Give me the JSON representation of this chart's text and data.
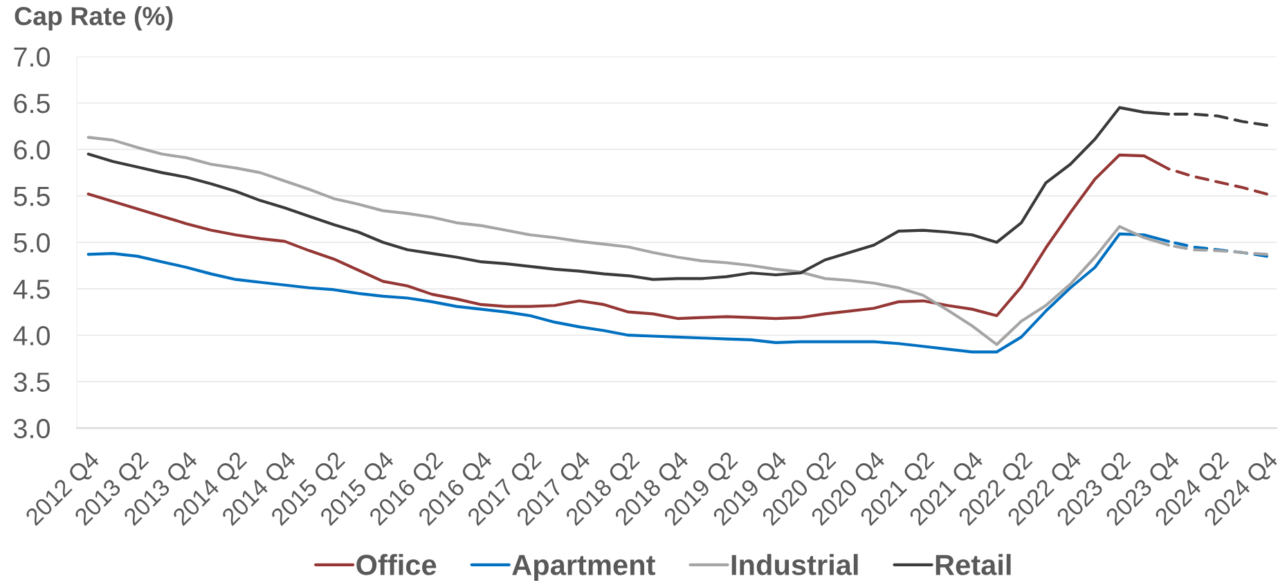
{
  "chart_data": {
    "type": "line",
    "ylabel": "Cap Rate (%)",
    "categories": [
      "2012 Q4",
      null,
      "2013 Q2",
      null,
      "2013 Q4",
      null,
      "2014 Q2",
      null,
      "2014 Q4",
      null,
      "2015 Q2",
      null,
      "2015 Q4",
      null,
      "2016 Q2",
      null,
      "2016 Q4",
      null,
      "2017 Q2",
      null,
      "2017 Q4",
      null,
      "2018 Q2",
      null,
      "2018 Q4",
      null,
      "2019 Q2",
      null,
      "2019 Q4",
      null,
      "2020 Q2",
      null,
      "2020 Q4",
      null,
      "2021 Q2",
      null,
      "2021 Q4",
      null,
      "2022 Q2",
      null,
      "2022 Q4",
      null,
      "2023 Q2",
      null,
      "2023 Q4",
      null,
      "2024 Q2",
      null,
      "2024 Q4"
    ],
    "series": [
      {
        "name": "Office",
        "color": "#953735",
        "values": [
          5.52,
          5.44,
          5.36,
          5.28,
          5.2,
          5.13,
          5.08,
          5.04,
          5.01,
          4.91,
          4.82,
          4.7,
          4.58,
          4.53,
          4.44,
          4.39,
          4.33,
          4.31,
          4.31,
          4.32,
          4.37,
          4.33,
          4.25,
          4.23,
          4.18,
          4.19,
          4.2,
          4.19,
          4.18,
          4.19,
          4.23,
          4.26,
          4.29,
          4.36,
          4.37,
          4.32,
          4.28,
          4.21,
          4.52,
          4.94,
          5.32,
          5.68,
          5.94,
          5.93,
          5.79,
          null,
          null,
          null,
          null
        ]
      },
      {
        "name": "Apartment",
        "color": "#0070c0",
        "values": [
          4.87,
          4.88,
          4.85,
          4.79,
          4.73,
          4.66,
          4.6,
          4.57,
          4.54,
          4.51,
          4.49,
          4.45,
          4.42,
          4.4,
          4.36,
          4.31,
          4.28,
          4.25,
          4.21,
          4.14,
          4.09,
          4.05,
          4.0,
          3.99,
          3.98,
          3.97,
          3.96,
          3.95,
          3.92,
          3.93,
          3.93,
          3.93,
          3.93,
          3.91,
          3.88,
          3.85,
          3.82,
          3.82,
          3.98,
          4.26,
          4.51,
          4.73,
          5.09,
          5.08,
          5.01,
          null,
          null,
          null,
          null
        ]
      },
      {
        "name": "Industrial",
        "color": "#a5a5a5",
        "values": [
          6.13,
          6.1,
          6.02,
          5.95,
          5.91,
          5.84,
          5.8,
          5.75,
          5.66,
          5.57,
          5.47,
          5.41,
          5.34,
          5.31,
          5.27,
          5.21,
          5.18,
          5.13,
          5.08,
          5.05,
          5.01,
          4.98,
          4.95,
          4.89,
          4.84,
          4.8,
          4.78,
          4.75,
          4.71,
          4.68,
          4.61,
          4.59,
          4.56,
          4.51,
          4.43,
          4.27,
          4.1,
          3.9,
          4.15,
          4.32,
          4.55,
          4.84,
          5.17,
          5.05,
          4.97,
          null,
          null,
          null,
          null
        ]
      },
      {
        "name": "Retail",
        "color": "#3a3a3a",
        "values": [
          5.95,
          5.87,
          5.81,
          5.75,
          5.7,
          5.63,
          5.55,
          5.45,
          5.37,
          5.28,
          5.19,
          5.11,
          5.0,
          4.92,
          4.88,
          4.84,
          4.79,
          4.77,
          4.74,
          4.71,
          4.69,
          4.66,
          4.64,
          4.6,
          4.61,
          4.61,
          4.63,
          4.67,
          4.65,
          4.67,
          4.81,
          4.89,
          4.97,
          5.12,
          5.13,
          5.11,
          5.08,
          5.0,
          5.21,
          5.64,
          5.84,
          6.11,
          6.45,
          6.4,
          6.38,
          null,
          null,
          null,
          null
        ]
      },
      {
        "color": "#953735",
        "line_style": "dashed",
        "values": [
          null,
          null,
          null,
          null,
          null,
          null,
          null,
          null,
          null,
          null,
          null,
          null,
          null,
          null,
          null,
          null,
          null,
          null,
          null,
          null,
          null,
          null,
          null,
          null,
          null,
          null,
          null,
          null,
          null,
          null,
          null,
          null,
          null,
          null,
          null,
          null,
          null,
          null,
          null,
          null,
          null,
          null,
          null,
          null,
          5.79,
          5.71,
          5.65,
          5.59,
          5.52
        ]
      },
      {
        "color": "#0070c0",
        "line_style": "dashed",
        "values": [
          null,
          null,
          null,
          null,
          null,
          null,
          null,
          null,
          null,
          null,
          null,
          null,
          null,
          null,
          null,
          null,
          null,
          null,
          null,
          null,
          null,
          null,
          null,
          null,
          null,
          null,
          null,
          null,
          null,
          null,
          null,
          null,
          null,
          null,
          null,
          null,
          null,
          null,
          null,
          null,
          null,
          null,
          null,
          null,
          5.01,
          4.95,
          4.92,
          4.89,
          4.85
        ]
      },
      {
        "color": "#a5a5a5",
        "line_style": "dashed",
        "values": [
          null,
          null,
          null,
          null,
          null,
          null,
          null,
          null,
          null,
          null,
          null,
          null,
          null,
          null,
          null,
          null,
          null,
          null,
          null,
          null,
          null,
          null,
          null,
          null,
          null,
          null,
          null,
          null,
          null,
          null,
          null,
          null,
          null,
          null,
          null,
          null,
          null,
          null,
          null,
          null,
          null,
          null,
          null,
          null,
          4.97,
          4.92,
          4.91,
          4.89,
          4.87
        ]
      },
      {
        "color": "#3a3a3a",
        "line_style": "dashed",
        "values": [
          null,
          null,
          null,
          null,
          null,
          null,
          null,
          null,
          null,
          null,
          null,
          null,
          null,
          null,
          null,
          null,
          null,
          null,
          null,
          null,
          null,
          null,
          null,
          null,
          null,
          null,
          null,
          null,
          null,
          null,
          null,
          null,
          null,
          null,
          null,
          null,
          null,
          null,
          null,
          null,
          null,
          null,
          null,
          null,
          6.38,
          6.38,
          6.36,
          6.3,
          6.26
        ]
      }
    ],
    "ylim": [
      3,
      7
    ],
    "yticks": [
      {
        "value": 3,
        "label": "3.0"
      },
      {
        "value": 3.5,
        "label": "3.5"
      },
      {
        "value": 4,
        "label": "4.0"
      },
      {
        "value": 4.5,
        "label": "4.5"
      },
      {
        "value": 5,
        "label": "5.0"
      },
      {
        "value": 5.5,
        "label": "5.5"
      },
      {
        "value": 6,
        "label": "6.0"
      },
      {
        "value": 6.5,
        "label": "6.5"
      },
      {
        "value": 7,
        "label": "7.0"
      }
    ],
    "grid": "y",
    "legend": "bottom",
    "line_style": "solid"
  }
}
